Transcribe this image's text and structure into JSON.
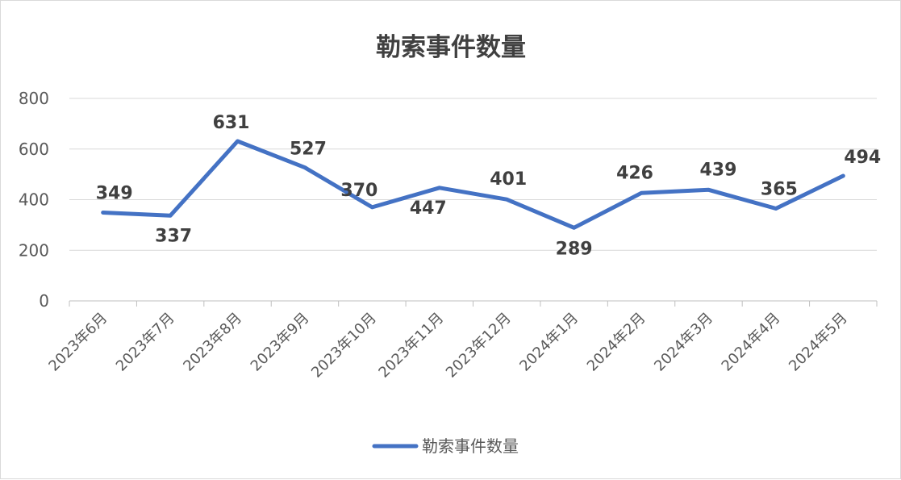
{
  "chart_data": {
    "type": "line",
    "title": "勒索事件数量",
    "categories": [
      "2023年6月",
      "2023年7月",
      "2023年8月",
      "2023年9月",
      "2023年10月",
      "2023年11月",
      "2023年12月",
      "2024年1月",
      "2024年2月",
      "2024年3月",
      "2024年4月",
      "2024年5月"
    ],
    "series": [
      {
        "name": "勒索事件数量",
        "values": [
          349,
          337,
          631,
          527,
          370,
          447,
          401,
          289,
          426,
          439,
          365,
          494
        ],
        "color": "#4472c4"
      }
    ],
    "ylim": [
      0,
      800
    ],
    "yticks": [
      0,
      200,
      400,
      600,
      800
    ],
    "grid": true,
    "legend": "bottom"
  }
}
